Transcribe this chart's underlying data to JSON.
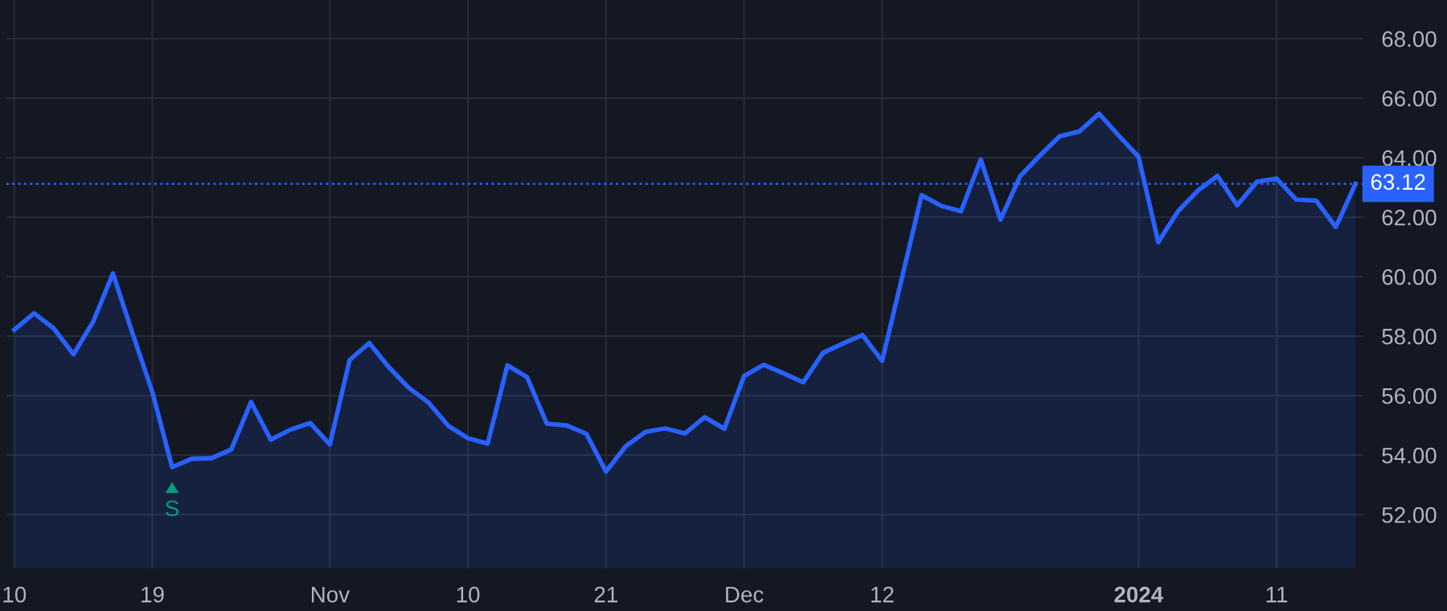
{
  "chart_data": {
    "type": "area",
    "categories": [
      "10",
      null,
      null,
      null,
      null,
      null,
      null,
      "19",
      null,
      null,
      null,
      null,
      null,
      null,
      null,
      null,
      "Nov",
      null,
      null,
      null,
      null,
      null,
      null,
      "10",
      null,
      null,
      null,
      null,
      null,
      null,
      "21",
      null,
      null,
      null,
      null,
      null,
      null,
      "Dec",
      null,
      null,
      null,
      null,
      null,
      null,
      "12",
      null,
      null,
      null,
      null,
      null,
      null,
      null,
      null,
      null,
      null,
      null,
      null,
      "2024",
      null,
      null,
      null,
      null,
      null,
      null,
      "11",
      null,
      null,
      null,
      null
    ],
    "series": [
      {
        "color": "#2962ff",
        "values": [
          58.22,
          58.77,
          58.26,
          57.39,
          58.49,
          60.11,
          58.08,
          56.12,
          53.6,
          53.88,
          53.9,
          54.19,
          55.79,
          54.52,
          54.86,
          55.08,
          54.36,
          57.2,
          57.77,
          56.95,
          56.26,
          55.77,
          54.99,
          54.57,
          54.39,
          57.02,
          56.62,
          55.06,
          55.0,
          54.72,
          53.45,
          54.3,
          54.78,
          54.9,
          54.73,
          55.28,
          54.89,
          56.66,
          57.04,
          56.75,
          56.45,
          57.44,
          57.75,
          58.04,
          57.17,
          59.95,
          62.74,
          62.38,
          62.2,
          63.94,
          61.92,
          63.38,
          64.07,
          64.72,
          64.88,
          65.48,
          64.74,
          64.03,
          61.16,
          62.2,
          62.89,
          63.39,
          62.4,
          63.19,
          63.3,
          62.59,
          62.56,
          61.67,
          63.12
        ]
      }
    ],
    "ylim": [
      50.2,
      69.3
    ],
    "yticks": [
      {
        "value": 52,
        "label": "52.00"
      },
      {
        "value": 54,
        "label": "54.00"
      },
      {
        "value": 56,
        "label": "56.00"
      },
      {
        "value": 58,
        "label": "58.00"
      },
      {
        "value": 60,
        "label": "60.00"
      },
      {
        "value": 62,
        "label": "62.00"
      },
      {
        "value": 64,
        "label": "64.00"
      },
      {
        "value": 66,
        "label": "66.00"
      },
      {
        "value": 68,
        "label": "68.00"
      }
    ],
    "ref_lines": [
      {
        "axis": "y",
        "value": 63.12,
        "label": "63.12",
        "color": "#2962ff",
        "line_style": "dotted"
      }
    ],
    "annotations": [
      {
        "text": "S",
        "y": 53.6
      }
    ],
    "grid": true
  }
}
